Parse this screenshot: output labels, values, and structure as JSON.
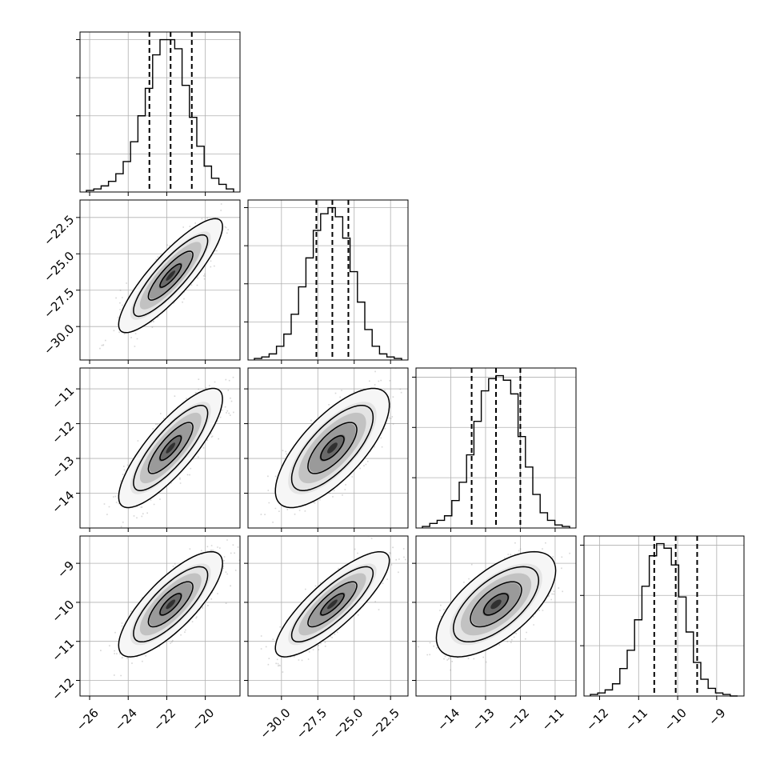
{
  "chart_data": {
    "type": "corner",
    "grid": true,
    "parameters": [
      {
        "range": [
          -26.5,
          -18.2
        ],
        "ticks": [
          -26,
          -24,
          -22,
          -20
        ],
        "tick_labels": [
          "−26",
          "−24",
          "−22",
          "−20"
        ],
        "quantiles": [
          -22.9,
          -21.8,
          -20.7
        ]
      },
      {
        "range": [
          -32.3,
          -21.3
        ],
        "ticks": [
          -30.0,
          -27.5,
          -25.0,
          -22.5
        ],
        "tick_labels": [
          "−30.0",
          "−27.5",
          "−25.0",
          "−22.5"
        ],
        "quantiles": [
          -27.6,
          -26.5,
          -25.4
        ]
      },
      {
        "range": [
          -15.0,
          -10.4
        ],
        "ticks": [
          -14,
          -13,
          -12,
          -11
        ],
        "tick_labels": [
          "−14",
          "−13",
          "−12",
          "−11"
        ],
        "quantiles": [
          -13.4,
          -12.7,
          -12.0
        ]
      },
      {
        "range": [
          -12.4,
          -8.3
        ],
        "ticks": [
          -12,
          -11,
          -10,
          -9
        ],
        "tick_labels": [
          "−12",
          "−11",
          "−10",
          "−9"
        ],
        "quantiles": [
          -10.6,
          -10.05,
          -9.5
        ]
      }
    ],
    "histograms": [
      {
        "param": 0,
        "bins": 20,
        "counts": [
          0.01,
          0.02,
          0.04,
          0.07,
          0.12,
          0.2,
          0.33,
          0.5,
          0.68,
          0.9,
          1.0,
          1.0,
          0.94,
          0.7,
          0.49,
          0.3,
          0.17,
          0.09,
          0.05,
          0.02
        ],
        "y_ticks": [
          0.25,
          0.5,
          0.75,
          1.0
        ]
      },
      {
        "param": 1,
        "bins": 20,
        "counts": [
          0.01,
          0.02,
          0.04,
          0.09,
          0.17,
          0.3,
          0.48,
          0.67,
          0.85,
          0.96,
          1.0,
          0.94,
          0.8,
          0.58,
          0.38,
          0.2,
          0.09,
          0.04,
          0.02,
          0.01
        ],
        "y_ticks": [
          0.25,
          0.5,
          0.75,
          1.0
        ]
      },
      {
        "param": 2,
        "bins": 20,
        "counts": [
          0.01,
          0.03,
          0.05,
          0.08,
          0.18,
          0.3,
          0.48,
          0.7,
          0.9,
          0.98,
          1.0,
          0.97,
          0.88,
          0.6,
          0.4,
          0.22,
          0.1,
          0.05,
          0.02,
          0.01
        ],
        "y_ticks": [
          0.33,
          0.66,
          0.99
        ]
      },
      {
        "param": 3,
        "bins": 20,
        "counts": [
          0.01,
          0.02,
          0.04,
          0.08,
          0.18,
          0.3,
          0.5,
          0.72,
          0.92,
          1.0,
          0.97,
          0.86,
          0.65,
          0.42,
          0.22,
          0.11,
          0.05,
          0.02,
          0.01,
          0.0
        ],
        "y_ticks": [
          0.33,
          0.66,
          0.99
        ]
      }
    ],
    "scatter_panels": [
      {
        "x_param": 0,
        "y_param": 1,
        "mean": [
          -21.8,
          -26.5
        ],
        "sd": [
          1.1,
          1.6
        ],
        "corr": 0.86
      },
      {
        "x_param": 0,
        "y_param": 2,
        "mean": [
          -21.8,
          -12.7
        ],
        "sd": [
          1.1,
          0.7
        ],
        "corr": 0.82
      },
      {
        "x_param": 1,
        "y_param": 2,
        "mean": [
          -26.5,
          -12.7
        ],
        "sd": [
          1.6,
          0.7
        ],
        "corr": 0.72
      },
      {
        "x_param": 0,
        "y_param": 3,
        "mean": [
          -21.8,
          -10.05
        ],
        "sd": [
          1.1,
          0.55
        ],
        "corr": 0.78
      },
      {
        "x_param": 1,
        "y_param": 3,
        "mean": [
          -26.5,
          -10.05
        ],
        "sd": [
          1.6,
          0.55
        ],
        "corr": 0.83
      },
      {
        "x_param": 2,
        "y_param": 3,
        "mean": [
          -12.7,
          -10.05
        ],
        "sd": [
          0.7,
          0.55
        ],
        "corr": 0.64
      }
    ]
  }
}
